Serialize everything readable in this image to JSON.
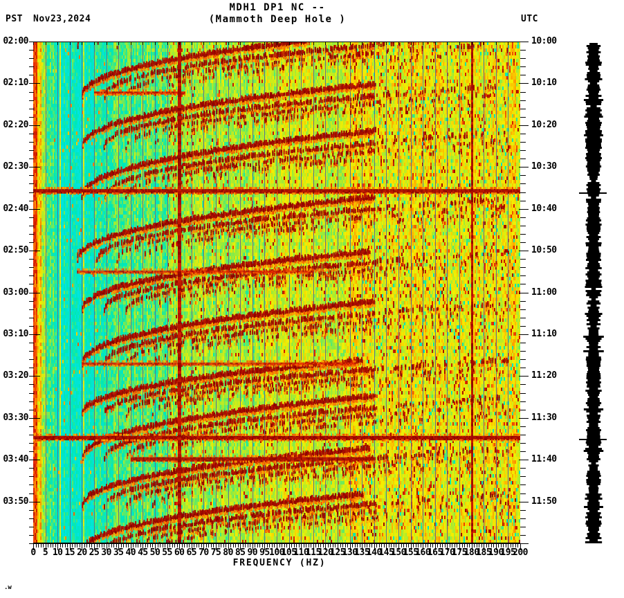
{
  "header": {
    "timezone_left": "PST",
    "date": "Nov23,2024",
    "title_line1": "MDH1 DP1 NC --",
    "title_line2": "(Mammoth Deep Hole )",
    "timezone_right": "UTC"
  },
  "corner_text": ".w",
  "chart_data": {
    "type": "heatmap",
    "subtype": "seismic-spectrogram",
    "station": "MDH1 DP1 NC",
    "station_name": "Mammoth Deep Hole",
    "date_pst": "Nov23,2024",
    "xlabel": "FREQUENCY (HZ)",
    "x_range_hz": [
      0,
      200
    ],
    "x_major_tick_step_hz": 5,
    "x_minor_tick_step_hz": 1,
    "x_tick_labels": [
      "0",
      "5",
      "10",
      "15",
      "20",
      "25",
      "30",
      "35",
      "40",
      "45",
      "50",
      "55",
      "60",
      "65",
      "70",
      "75",
      "80",
      "85",
      "90",
      "95",
      "100",
      "105",
      "110",
      "115",
      "120",
      "125",
      "130",
      "135",
      "140",
      "145",
      "150",
      "155",
      "160",
      "165",
      "170",
      "175",
      "180",
      "185",
      "190",
      "195",
      "200"
    ],
    "time_span_minutes": 120,
    "time_major_tick_step_min": 10,
    "time_minor_tick_step_min": 2,
    "left_time_labels_pst": [
      "02:00",
      "02:10",
      "02:20",
      "02:30",
      "02:40",
      "02:50",
      "03:00",
      "03:10",
      "03:20",
      "03:30",
      "03:40",
      "03:50"
    ],
    "right_time_labels_utc": [
      "10:00",
      "10:10",
      "10:20",
      "10:30",
      "10:40",
      "10:50",
      "11:00",
      "11:10",
      "11:20",
      "11:30",
      "11:40",
      "11:50"
    ],
    "palette": {
      "description": "low power to high power",
      "stops": [
        "#00e4e4",
        "#00e8b4",
        "#96eb3c",
        "#f5ee00",
        "#ff9600",
        "#e62800",
        "#870000"
      ]
    },
    "gridline_color": "#5a7391",
    "features": {
      "persistent_lines_hz": [
        60,
        180
      ],
      "harmonic_ratios": [
        1,
        1.45,
        1.9,
        2.45
      ],
      "tremor_glide_arcs": [
        {
          "start_min": 1,
          "f_low_hz": 18,
          "f_high_hz": 140,
          "rise_min": 16
        },
        {
          "start_min": 13,
          "f_low_hz": 20,
          "f_high_hz": 138,
          "rise_min": 15
        },
        {
          "start_min": 25,
          "f_low_hz": 20,
          "f_high_hz": 140,
          "rise_min": 15
        },
        {
          "start_min": 37,
          "f_low_hz": 20,
          "f_high_hz": 142,
          "rise_min": 16
        },
        {
          "start_min": 52,
          "f_low_hz": 18,
          "f_high_hz": 140,
          "rise_min": 15
        },
        {
          "start_min": 64,
          "f_low_hz": 20,
          "f_high_hz": 138,
          "rise_min": 14
        },
        {
          "start_min": 77,
          "f_low_hz": 20,
          "f_high_hz": 140,
          "rise_min": 15
        },
        {
          "start_min": 89,
          "f_low_hz": 20,
          "f_high_hz": 135,
          "rise_min": 13
        },
        {
          "start_min": 99.5,
          "f_low_hz": 20,
          "f_high_hz": 140,
          "rise_min": 15
        },
        {
          "start_min": 111,
          "f_low_hz": 20,
          "f_high_hz": 138,
          "rise_min": 14
        },
        {
          "start_min": 122,
          "f_low_hz": 20,
          "f_high_hz": 135,
          "rise_min": 14
        }
      ],
      "broadband_events": [
        {
          "time_pst": "02:36",
          "time_min": 35.7,
          "f_start_hz": 0,
          "f_end_hz": 200,
          "intensity": "strong"
        },
        {
          "time_pst": "03:35",
          "time_min": 94.7,
          "f_start_hz": 0,
          "f_end_hz": 200,
          "intensity": "strong"
        },
        {
          "time_pst": "02:12",
          "time_min": 12.2,
          "f_start_hz": 25,
          "f_end_hz": 62,
          "intensity": "medium"
        },
        {
          "time_pst": "02:55",
          "time_min": 55,
          "f_start_hz": 18,
          "f_end_hz": 115,
          "intensity": "medium"
        },
        {
          "time_pst": "03:17",
          "time_min": 77,
          "f_start_hz": 20,
          "f_end_hz": 132,
          "intensity": "medium"
        },
        {
          "time_pst": "03:40",
          "time_min": 99.8,
          "f_start_hz": 40,
          "f_end_hz": 140,
          "intensity": "strong"
        }
      ]
    },
    "waveform_bar": {
      "color": "#000000",
      "event_marker_times_min": [
        35.7,
        94.7
      ]
    }
  }
}
